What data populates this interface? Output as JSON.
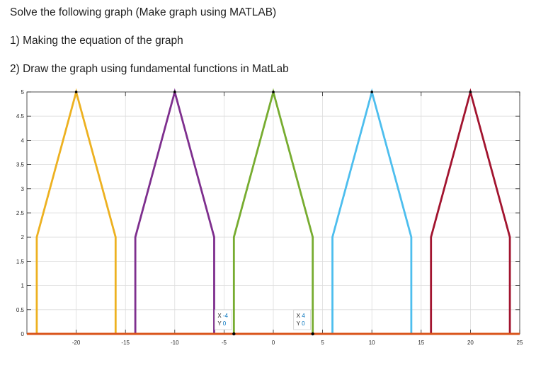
{
  "question": {
    "line0": "Solve the following graph (Make graph using MATLAB)",
    "line1": "1) Making the equation of the graph",
    "line2": "2) Draw the graph using fundamental functions in MatLab"
  },
  "chart_data": {
    "type": "line",
    "xlim": [
      -25,
      25
    ],
    "ylim": [
      0,
      5
    ],
    "grid": true,
    "xticks": [
      -20,
      -15,
      -10,
      -5,
      0,
      5,
      10,
      15,
      20,
      25
    ],
    "yticks": [
      0,
      0.5,
      1,
      1.5,
      2,
      2.5,
      3,
      3.5,
      4,
      4.5,
      5
    ],
    "baseline": {
      "color": "#D95319",
      "x": [
        -25,
        25
      ],
      "y": [
        0,
        0
      ]
    },
    "series": [
      {
        "color": "#EDB120",
        "x": [
          -24,
          -24,
          -20,
          -16,
          -16
        ],
        "y": [
          0,
          2,
          5,
          2,
          0
        ]
      },
      {
        "color": "#7E2F8E",
        "x": [
          -14,
          -14,
          -10,
          -6,
          -6
        ],
        "y": [
          0,
          2,
          5,
          2,
          0
        ]
      },
      {
        "color": "#77AC30",
        "x": [
          -4,
          -4,
          0,
          4,
          4
        ],
        "y": [
          0,
          2,
          5,
          2,
          0
        ]
      },
      {
        "color": "#4DBEEE",
        "x": [
          6,
          6,
          10,
          14,
          14
        ],
        "y": [
          0,
          2,
          5,
          2,
          0
        ]
      },
      {
        "color": "#A2142F",
        "x": [
          16,
          16,
          20,
          24,
          24
        ],
        "y": [
          0,
          2,
          5,
          2,
          0
        ]
      }
    ],
    "datatips": [
      {
        "x_label": "X",
        "x_value": "-4",
        "y_label": "Y",
        "y_value": "0",
        "x": -4,
        "y": 0
      },
      {
        "x_label": "X",
        "x_value": "4",
        "y_label": "Y",
        "y_value": "0",
        "x": 4,
        "y": 0
      }
    ]
  }
}
